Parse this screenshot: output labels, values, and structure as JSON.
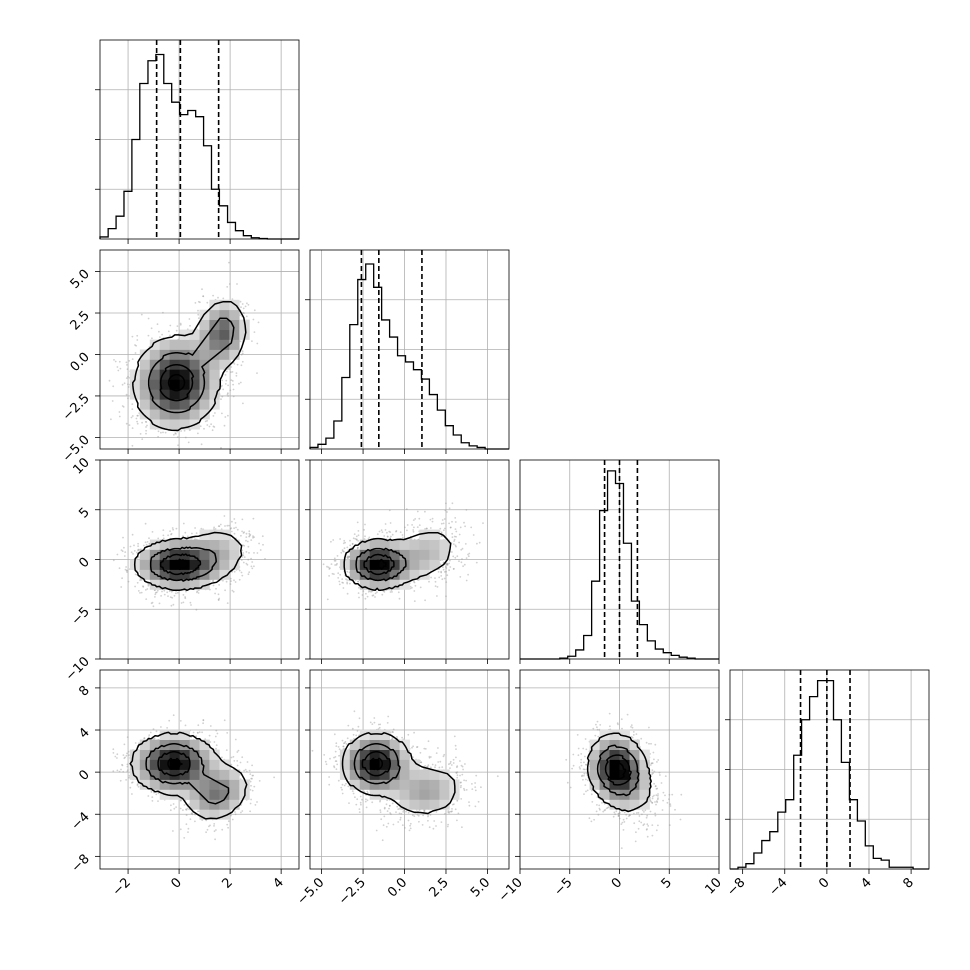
{
  "chart_data": {
    "type": "corner",
    "grid": true,
    "params": [
      {
        "lim": [
          -3.1,
          4.7
        ],
        "ticks": [
          -2,
          0,
          2,
          4
        ],
        "tick_labels": [
          "−2",
          "0",
          "2",
          "4"
        ]
      },
      {
        "lim": [
          -5.7,
          6.3
        ],
        "ticks": [
          -5.0,
          -2.5,
          0.0,
          2.5,
          5.0
        ],
        "tick_labels": [
          "−5.0",
          "−2.5",
          "0.0",
          "2.5",
          "5.0"
        ]
      },
      {
        "lim": [
          -10,
          10
        ],
        "ticks": [
          -10,
          -5,
          0,
          5,
          10
        ],
        "tick_labels": [
          "−10",
          "−5",
          "0",
          "5",
          "10"
        ]
      },
      {
        "lim": [
          -9.2,
          9.7
        ],
        "ticks": [
          -8,
          -4,
          0,
          4,
          8
        ],
        "tick_labels": [
          "−8",
          "−4",
          "0",
          "4",
          "8"
        ]
      }
    ],
    "quantiles": [
      [
        -0.88,
        0.05,
        1.55
      ],
      [
        -2.6,
        -1.55,
        1.05
      ],
      [
        -1.5,
        0.0,
        1.8
      ],
      [
        -2.5,
        0.0,
        2.2
      ]
    ],
    "histograms": [
      {
        "edges": [
          -3.1,
          -2.78,
          -2.47,
          -2.16,
          -1.85,
          -1.54,
          -1.22,
          -0.91,
          -0.6,
          -0.29,
          0.02,
          0.34,
          0.65,
          0.96,
          1.27,
          1.58,
          1.9,
          2.21,
          2.52,
          2.83,
          3.14,
          3.46,
          3.77,
          4.08,
          4.39,
          4.7
        ],
        "counts": [
          5,
          25,
          55,
          115,
          240,
          375,
          430,
          445,
          375,
          330,
          300,
          310,
          295,
          225,
          120,
          80,
          40,
          20,
          8,
          3,
          1,
          0,
          0,
          0,
          0
        ],
        "ylim": [
          0,
          480
        ]
      },
      {
        "edges": [
          -5.7,
          -5.22,
          -4.74,
          -4.26,
          -3.78,
          -3.3,
          -2.82,
          -2.34,
          -1.86,
          -1.38,
          -0.9,
          -0.42,
          0.06,
          0.54,
          1.02,
          1.5,
          1.98,
          2.46,
          2.94,
          3.42,
          3.9,
          4.38,
          4.86,
          5.34,
          5.82,
          6.3
        ],
        "counts": [
          5,
          15,
          35,
          90,
          230,
          400,
          545,
          595,
          520,
          415,
          360,
          300,
          280,
          255,
          225,
          175,
          125,
          75,
          45,
          20,
          10,
          5,
          0,
          0,
          0
        ],
        "ylim": [
          0,
          640
        ]
      },
      {
        "edges": [
          -10,
          -9.2,
          -8.4,
          -7.6,
          -6.8,
          -6.0,
          -5.2,
          -4.4,
          -3.6,
          -2.8,
          -2.0,
          -1.2,
          -0.4,
          0.4,
          1.2,
          2.0,
          2.8,
          3.6,
          4.4,
          5.2,
          6.0,
          6.8,
          7.6,
          8.4,
          9.2,
          10
        ],
        "counts": [
          0,
          0,
          0,
          0,
          0,
          5,
          15,
          50,
          130,
          430,
          820,
          1040,
          970,
          640,
          320,
          190,
          100,
          55,
          35,
          20,
          10,
          5,
          0,
          0,
          0
        ],
        "ylim": [
          0,
          1100
        ]
      },
      {
        "edges": [
          -9.2,
          -8.44,
          -7.69,
          -6.93,
          -6.18,
          -5.42,
          -4.66,
          -3.91,
          -3.15,
          -2.4,
          -1.64,
          -0.88,
          -0.13,
          0.63,
          1.38,
          2.14,
          2.9,
          3.65,
          4.41,
          5.16,
          5.92,
          6.68,
          7.43,
          8.19,
          8.94,
          9.7
        ],
        "counts": [
          0,
          5,
          15,
          45,
          80,
          105,
          160,
          195,
          320,
          420,
          485,
          530,
          530,
          420,
          300,
          195,
          135,
          65,
          30,
          25,
          5,
          5,
          5,
          0,
          0
        ],
        "ylim": [
          0,
          560
        ]
      }
    ],
    "pairs": [
      {
        "x": 0,
        "y": 1,
        "blobs": [
          {
            "cx": -0.1,
            "cy": -1.7,
            "sx": 0.8,
            "sy": 1.35,
            "rho": 0.05,
            "w": 0.78
          },
          {
            "cx": 1.7,
            "cy": 1.3,
            "sx": 0.5,
            "sy": 1.05,
            "rho": 0.1,
            "w": 0.22
          }
        ]
      },
      {
        "x": 0,
        "y": 2,
        "blobs": [
          {
            "cx": -0.1,
            "cy": -0.5,
            "sx": 0.8,
            "sy": 1.2,
            "rho": 0.0,
            "w": 0.72
          },
          {
            "cx": 1.3,
            "cy": 0.4,
            "sx": 0.8,
            "sy": 1.6,
            "rho": 0.25,
            "w": 0.28
          }
        ]
      },
      {
        "x": 1,
        "y": 2,
        "blobs": [
          {
            "cx": -1.6,
            "cy": -0.5,
            "sx": 1.0,
            "sy": 1.2,
            "rho": 0.0,
            "w": 0.72
          },
          {
            "cx": 1.2,
            "cy": 0.6,
            "sx": 1.2,
            "sy": 1.6,
            "rho": 0.25,
            "w": 0.28
          }
        ]
      },
      {
        "x": 0,
        "y": 3,
        "blobs": [
          {
            "cx": -0.2,
            "cy": 0.8,
            "sx": 0.8,
            "sy": 1.4,
            "rho": 0.0,
            "w": 0.72
          },
          {
            "cx": 1.5,
            "cy": -2.0,
            "sx": 0.65,
            "sy": 1.4,
            "rho": 0.2,
            "w": 0.28
          }
        ]
      },
      {
        "x": 1,
        "y": 3,
        "blobs": [
          {
            "cx": -1.7,
            "cy": 0.8,
            "sx": 1.0,
            "sy": 1.4,
            "rho": 0.0,
            "w": 0.72
          },
          {
            "cx": 1.3,
            "cy": -1.8,
            "sx": 1.2,
            "sy": 1.4,
            "rho": 0.1,
            "w": 0.28
          }
        ]
      },
      {
        "x": 2,
        "y": 3,
        "blobs": [
          {
            "cx": -0.2,
            "cy": 0.3,
            "sx": 1.4,
            "sy": 1.6,
            "rho": -0.1,
            "w": 0.8
          },
          {
            "cx": 0.8,
            "cy": -1.3,
            "sx": 1.9,
            "sy": 2.0,
            "rho": -0.3,
            "w": 0.2
          }
        ]
      }
    ]
  }
}
